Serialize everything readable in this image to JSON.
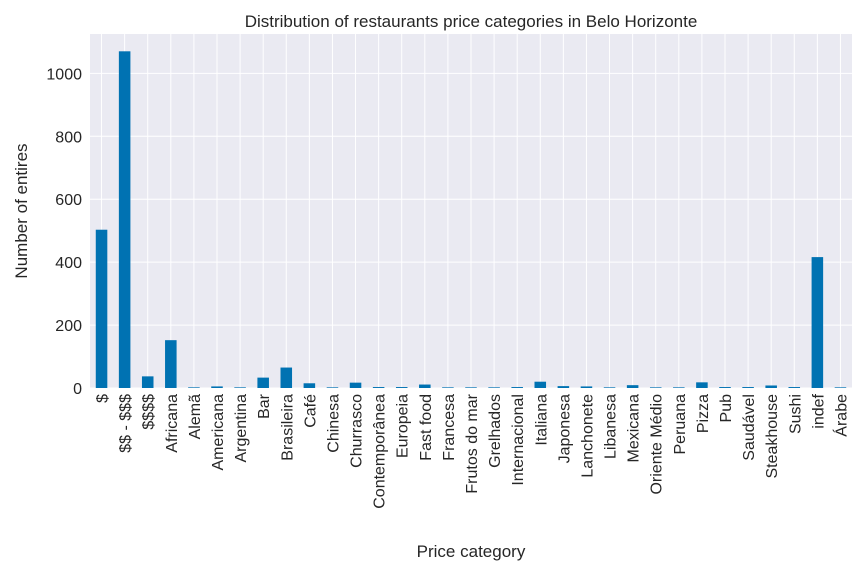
{
  "chart_data": {
    "type": "bar",
    "title": "Distribution of restaurants price categories in Belo Horizonte",
    "xlabel": "Price category",
    "ylabel": "Number of entires",
    "categories": [
      "$",
      "$$ - $$$",
      "$$$$",
      "Africana",
      "Alemã",
      "Americana",
      "Argentina",
      "Bar",
      "Brasileira",
      "Café",
      "Chinesa",
      "Churrasco",
      "Contemporânea",
      "Europeia",
      "Fast food",
      "Francesa",
      "Frutos do mar",
      "Grelhados",
      "Internacional",
      "Italiana",
      "Japonesa",
      "Lanchonete",
      "Libanesa",
      "Mexicana",
      "Oriente Médio",
      "Peruana",
      "Pizza",
      "Pub",
      "Saudável",
      "Steakhouse",
      "Sushi",
      "indef",
      "Árabe"
    ],
    "values": [
      503,
      1070,
      37,
      152,
      2,
      5,
      2,
      33,
      65,
      15,
      2,
      17,
      3,
      3,
      11,
      2,
      2,
      2,
      3,
      20,
      6,
      5,
      2,
      9,
      2,
      2,
      18,
      3,
      3,
      8,
      3,
      416,
      2
    ],
    "ylim": [
      0,
      1125
    ],
    "yticks": [
      0,
      200,
      400,
      600,
      800,
      1000
    ],
    "grid": true,
    "bar_color": "#0072b2",
    "plot_background": "#eaeaf2"
  }
}
